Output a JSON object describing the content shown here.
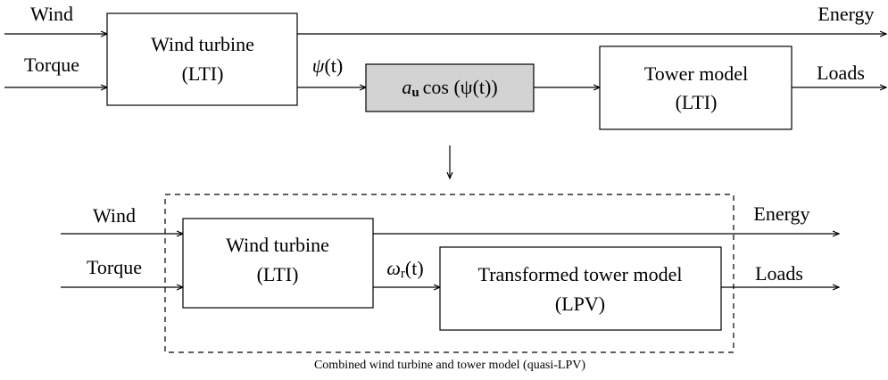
{
  "top": {
    "inputs": [
      "Wind",
      "Torque"
    ],
    "wind_turbine": {
      "title": "Wind turbine",
      "subtitle": "(LTI)"
    },
    "signal": {
      "symbol": "ψ",
      "arg": "(t)"
    },
    "nonlinearity": {
      "coefficient": "a",
      "subscript": "u",
      "function": "cos (ψ(t))"
    },
    "tower_model": {
      "title": "Tower model",
      "subtitle": "(LTI)"
    },
    "outputs": [
      "Energy",
      "Loads"
    ]
  },
  "bottom": {
    "inputs": [
      "Wind",
      "Torque"
    ],
    "wind_turbine": {
      "title": "Wind turbine",
      "subtitle": "(LTI)"
    },
    "signal": {
      "symbol": "ω",
      "subscript": "r",
      "arg": "(t)"
    },
    "tower_model": {
      "title": "Transformed tower model",
      "subtitle": "(LPV)"
    },
    "outputs": [
      "Energy",
      "Loads"
    ],
    "caption": "Combined wind turbine and tower model (quasi-LPV)"
  }
}
